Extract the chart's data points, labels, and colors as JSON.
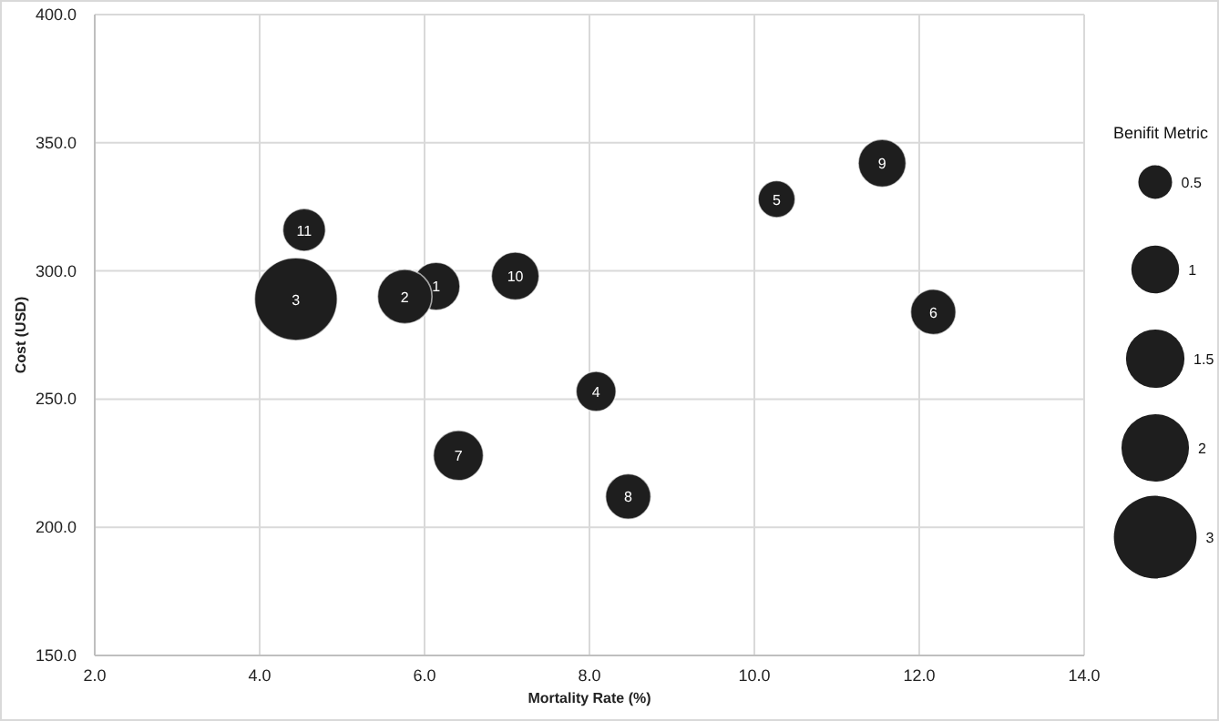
{
  "chart_data": {
    "type": "bubble",
    "xlabel": "Mortality Rate (%)",
    "ylabel": "Cost (USD)",
    "legend_title": "Benifit Metric",
    "grid": true,
    "xlim": [
      2,
      14
    ],
    "xticks": [
      {
        "value": 2,
        "label": "2.0"
      },
      {
        "value": 4,
        "label": "4.0"
      },
      {
        "value": 6,
        "label": "6.0"
      },
      {
        "value": 8,
        "label": "8.0"
      },
      {
        "value": 10,
        "label": "10.0"
      },
      {
        "value": 12,
        "label": "12.0"
      },
      {
        "value": 14,
        "label": "14.0"
      }
    ],
    "ylim": [
      150,
      400
    ],
    "yticks": [
      {
        "value": 150,
        "label": "150.0"
      },
      {
        "value": 200,
        "label": "200.0"
      },
      {
        "value": 250,
        "label": "250.0"
      },
      {
        "value": 300,
        "label": "300.0"
      },
      {
        "value": 350,
        "label": "350.0"
      },
      {
        "value": 400,
        "label": "400.0"
      }
    ],
    "size_legend": [
      0.5,
      1,
      1.5,
      2,
      3
    ],
    "series": [
      {
        "color": "#1e1e1e",
        "x": [
          6.14,
          5.76,
          4.44,
          8.08,
          10.27,
          12.17,
          6.41,
          8.47,
          11.55,
          7.1,
          4.54
        ],
        "values": [
          294,
          290,
          289,
          253,
          328,
          284,
          228,
          212,
          342,
          298,
          316
        ],
        "sizes": [
          1,
          1.3,
          3,
          0.7,
          0.6,
          0.9,
          1.1,
          0.9,
          1,
          1,
          0.8
        ]
      }
    ],
    "annotations": [
      {
        "text": "1",
        "x": 6.14,
        "y": 294
      },
      {
        "text": "2",
        "x": 5.76,
        "y": 290
      },
      {
        "text": "3",
        "x": 4.44,
        "y": 289
      },
      {
        "text": "4",
        "x": 8.08,
        "y": 253
      },
      {
        "text": "5",
        "x": 10.27,
        "y": 328
      },
      {
        "text": "6",
        "x": 12.17,
        "y": 284
      },
      {
        "text": "7",
        "x": 6.41,
        "y": 228
      },
      {
        "text": "8",
        "x": 8.47,
        "y": 212
      },
      {
        "text": "9",
        "x": 11.55,
        "y": 342
      },
      {
        "text": "10",
        "x": 7.1,
        "y": 298
      },
      {
        "text": "11",
        "x": 4.54,
        "y": 316
      }
    ]
  }
}
